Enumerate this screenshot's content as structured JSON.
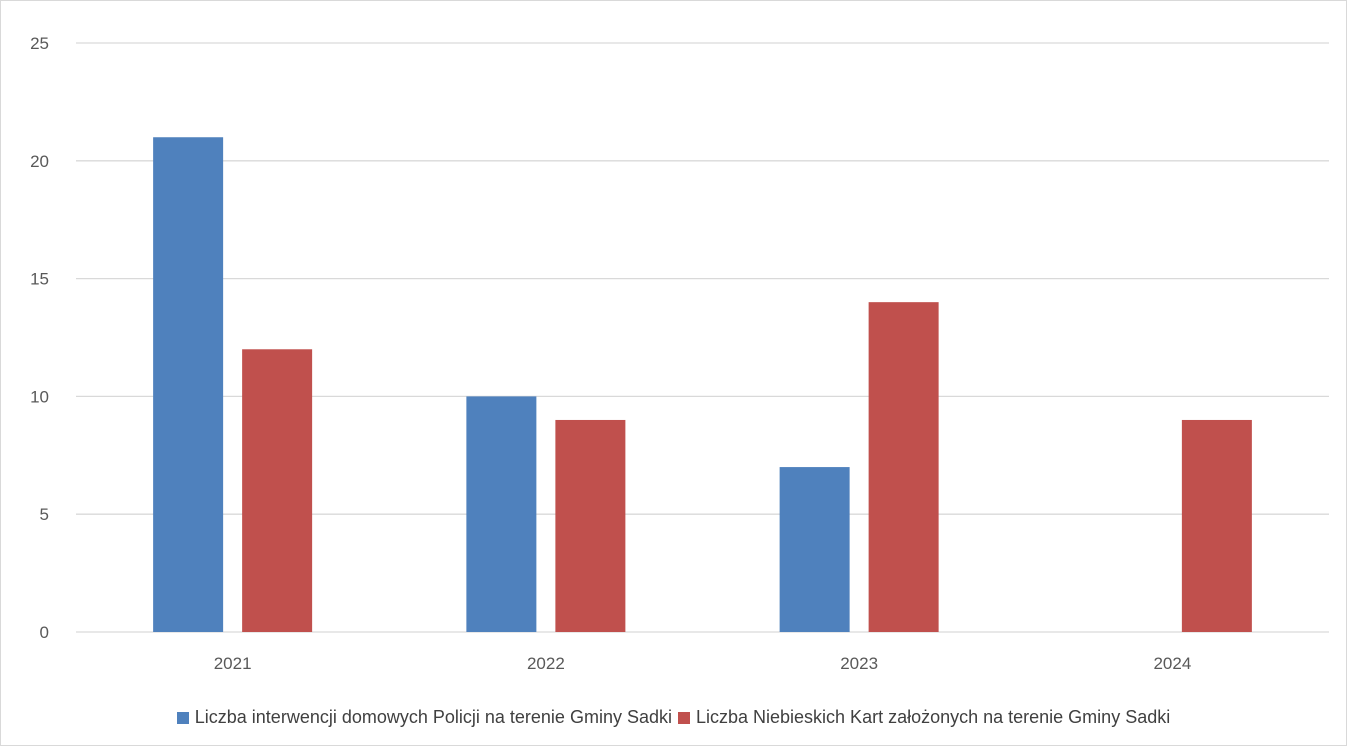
{
  "chart_data": {
    "type": "bar",
    "title": "",
    "xlabel": "",
    "ylabel": "",
    "categories": [
      "2021",
      "2022",
      "2023",
      "2024"
    ],
    "ylim": [
      0,
      25
    ],
    "yticks": [
      0,
      5,
      10,
      15,
      20,
      25
    ],
    "grid": true,
    "legend_position": "bottom",
    "series": [
      {
        "name": "Liczba interwencji domowych Policji na terenie Gminy Sadki",
        "color": "#4f81bd",
        "values": [
          21,
          10,
          7,
          null
        ]
      },
      {
        "name": "Liczba Niebieskich Kart założonych na terenie Gminy Sadki",
        "color": "#c0504d",
        "values": [
          12,
          9,
          14,
          9
        ]
      }
    ]
  }
}
